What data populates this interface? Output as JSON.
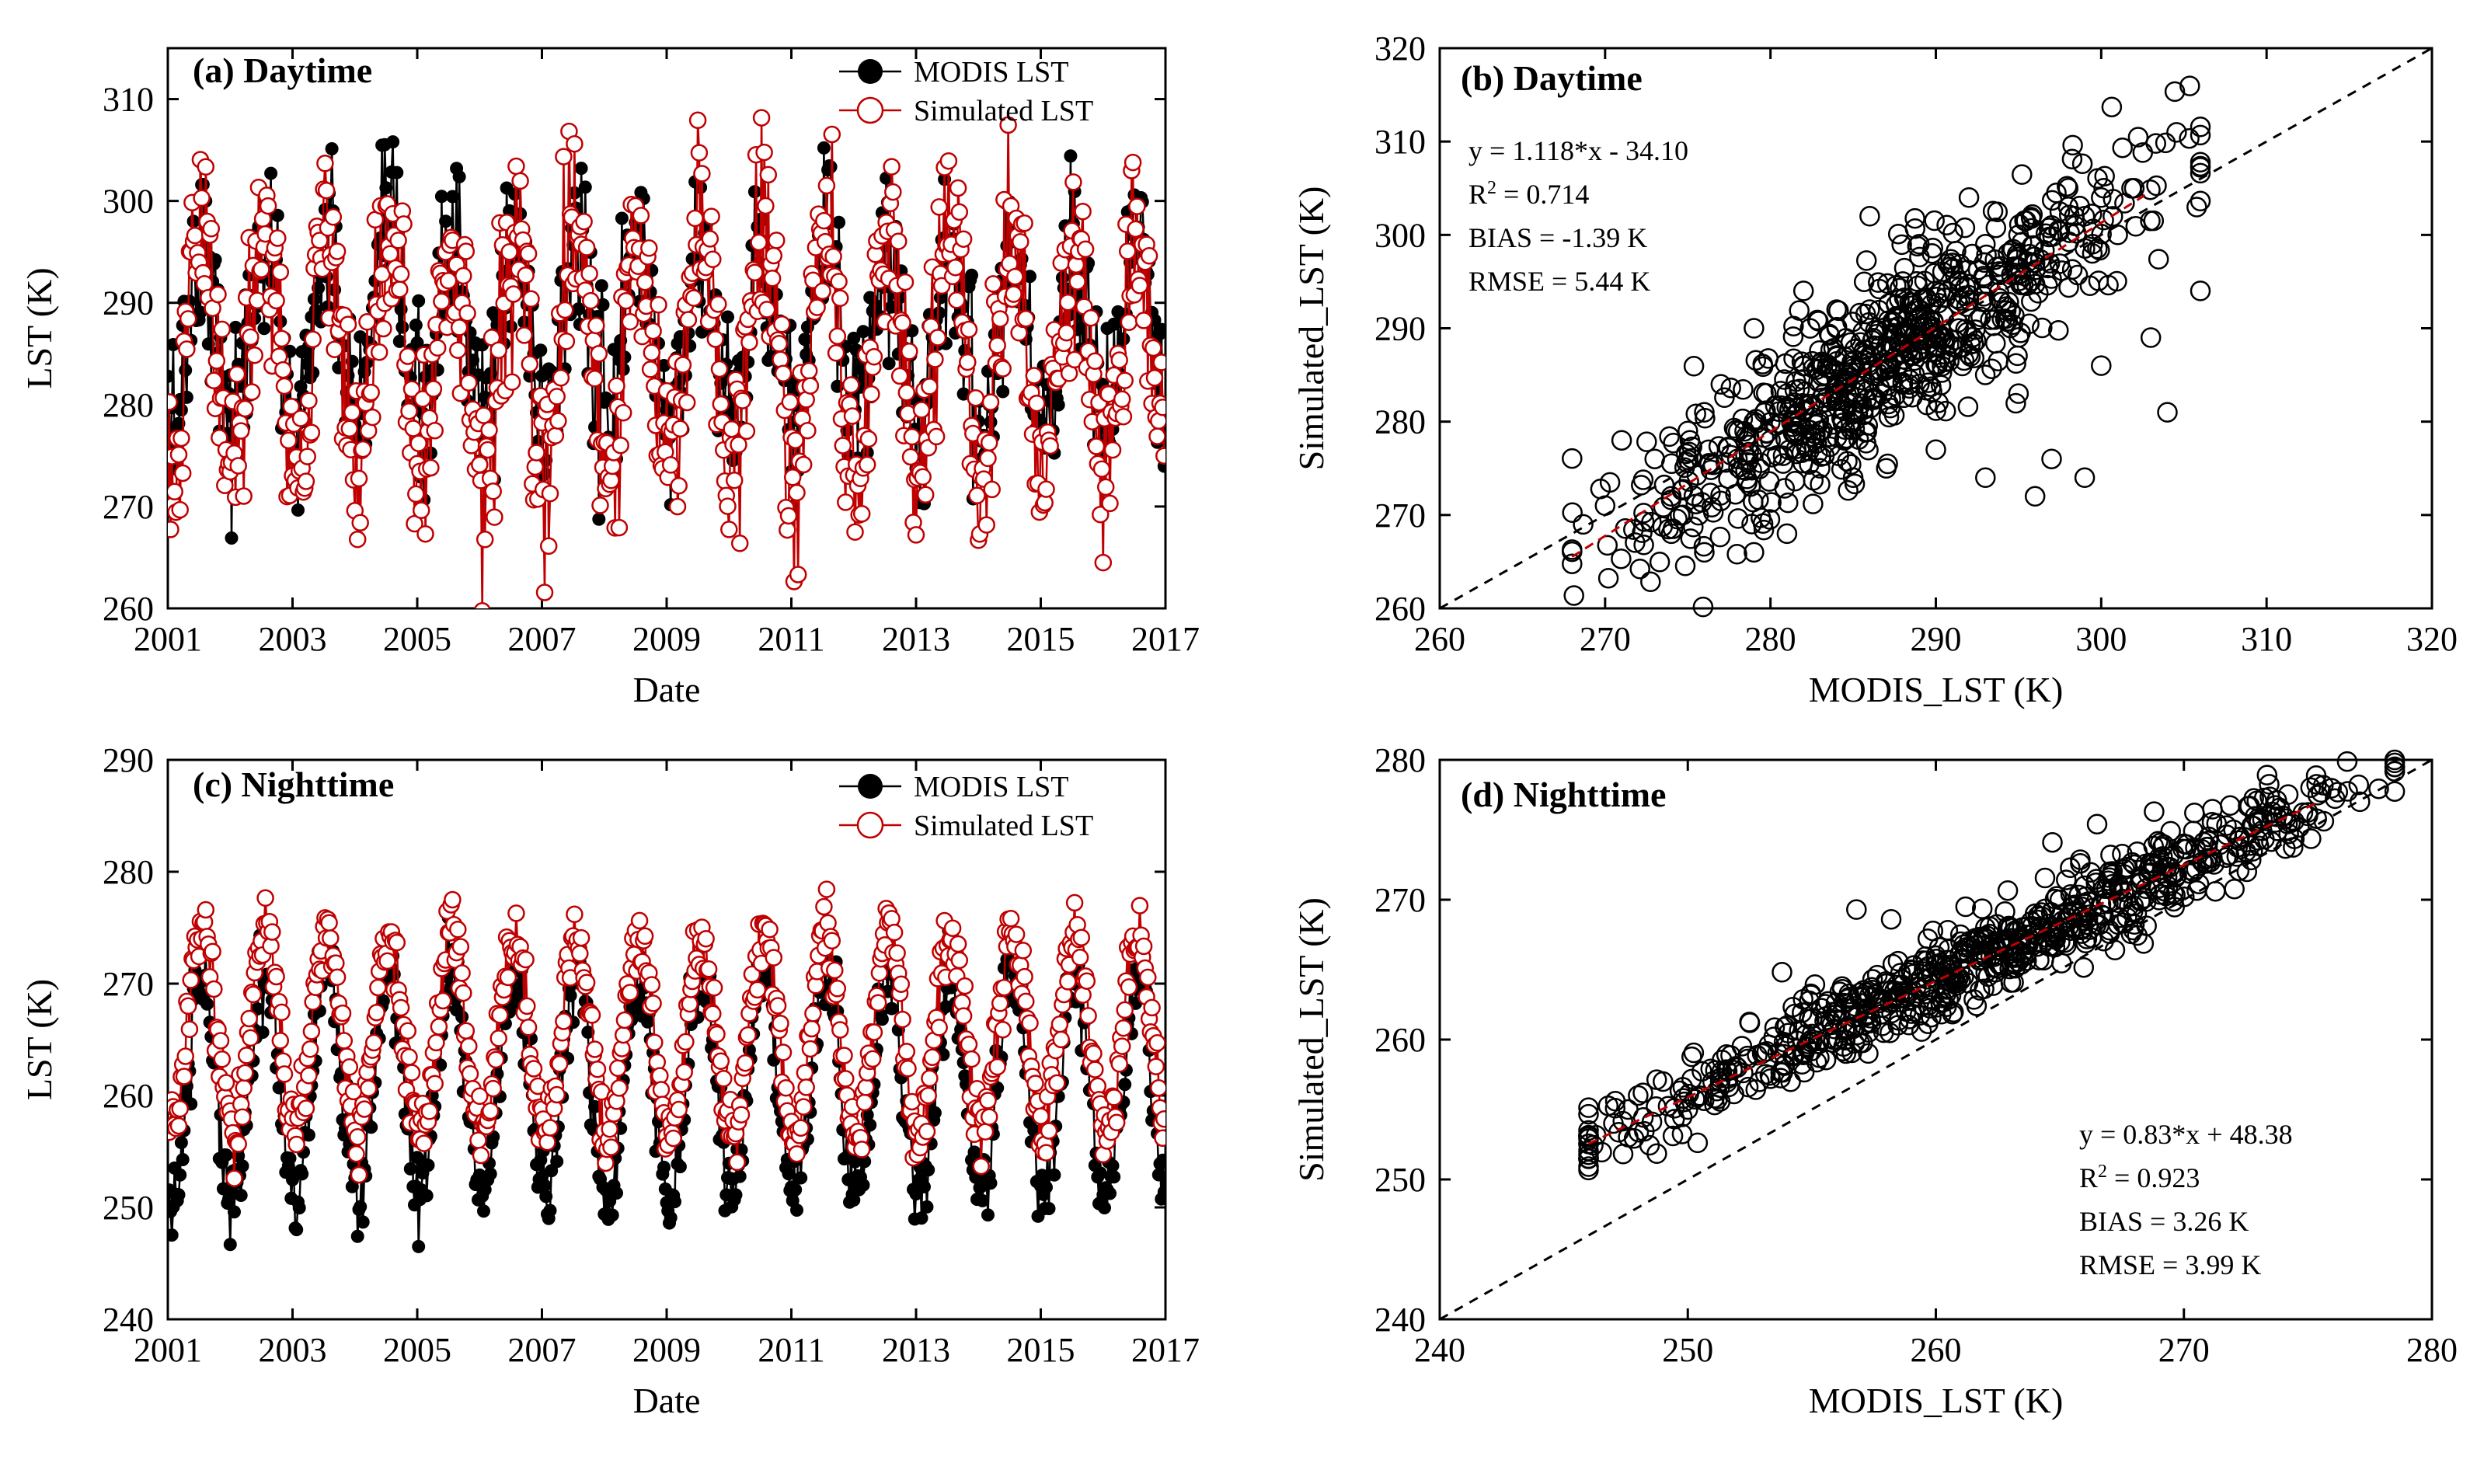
{
  "chart_data": [
    {
      "id": "a",
      "type": "line",
      "title": "(a) Daytime",
      "xlabel": "Date",
      "ylabel": "LST (K)",
      "xlim": [
        2001,
        2017
      ],
      "ylim": [
        260,
        315
      ],
      "xticks": [
        2001,
        2003,
        2005,
        2007,
        2009,
        2011,
        2013,
        2015,
        2017
      ],
      "yticks": [
        260,
        270,
        280,
        290,
        300,
        310
      ],
      "legend": [
        "MODIS LST",
        "Simulated LST"
      ],
      "series": [
        {
          "name": "MODIS LST",
          "color": "#000000",
          "marker": "filled-circle",
          "seasonal_model": {
            "mean": 287.0,
            "amplitude": 9.0,
            "peak_year_fraction": 0.55,
            "noise": 4.5
          },
          "values_per_year": 46
        },
        {
          "name": "Simulated LST",
          "color": "#c00000",
          "marker": "open-circle",
          "seasonal_model": {
            "mean": 285.0,
            "amplitude": 12.0,
            "peak_year_fraction": 0.55,
            "noise": 5.0
          },
          "values_per_year": 46
        }
      ]
    },
    {
      "id": "b",
      "type": "scatter",
      "title": "(b) Daytime",
      "xlabel": "MODIS_LST (K)",
      "ylabel": "Simulated_LST (K)",
      "xlim": [
        260,
        320
      ],
      "ylim": [
        260,
        320
      ],
      "xticks": [
        260,
        270,
        280,
        290,
        300,
        310,
        320
      ],
      "yticks": [
        260,
        270,
        280,
        290,
        300,
        310,
        320
      ],
      "stats": [
        "y = 1.118*x - 34.10",
        "R",
        "2",
        " = 0.714",
        "BIAS = -1.39 K",
        "RMSE = 5.44 K"
      ],
      "fit": {
        "slope": 1.118,
        "intercept": -34.1,
        "x_range": [
          268,
          303
        ]
      },
      "one_to_one": [
        260,
        320
      ],
      "points": [
        [
          270,
          271
        ],
        [
          271,
          278
        ],
        [
          273,
          276
        ],
        [
          274,
          272
        ],
        [
          275,
          279
        ],
        [
          276,
          281
        ],
        [
          277,
          284
        ],
        [
          278,
          276
        ],
        [
          279,
          280
        ],
        [
          280,
          278
        ],
        [
          281,
          283
        ],
        [
          282,
          286
        ],
        [
          283,
          279
        ],
        [
          284,
          290
        ],
        [
          285,
          286
        ],
        [
          286,
          292
        ],
        [
          287,
          288
        ],
        [
          288,
          295
        ],
        [
          289,
          291
        ],
        [
          290,
          294
        ],
        [
          291,
          297
        ],
        [
          292,
          293
        ],
        [
          293,
          299
        ],
        [
          294,
          296
        ],
        [
          295,
          300
        ],
        [
          296,
          297
        ],
        [
          297,
          301
        ],
        [
          298,
          303
        ],
        [
          299,
          302
        ],
        [
          300,
          304
        ],
        [
          302,
          305
        ],
        [
          303,
          289
        ],
        [
          304,
          281
        ],
        [
          306,
          294
        ],
        [
          300,
          286
        ],
        [
          297,
          276
        ],
        [
          295,
          283
        ],
        [
          299,
          274
        ],
        [
          296,
          272
        ],
        [
          293,
          274
        ],
        [
          285,
          274
        ],
        [
          287,
          275
        ],
        [
          290,
          277
        ],
        [
          281,
          268
        ],
        [
          279,
          266
        ],
        [
          276,
          266
        ],
        [
          274,
          268
        ],
        [
          283,
          275
        ],
        [
          285,
          281
        ],
        [
          288,
          284
        ],
        [
          279,
          290
        ],
        [
          282,
          294
        ],
        [
          286,
          302
        ],
        [
          292,
          304
        ],
        [
          298,
          305
        ],
        [
          301,
          300
        ],
        [
          289,
          299
        ],
        [
          284,
          292
        ],
        [
          291,
          288
        ],
        [
          294,
          291
        ]
      ],
      "scatter_model": {
        "x_mean": 287.0,
        "x_sd": 8.0,
        "residual_sd": 4.5,
        "n": 700
      }
    },
    {
      "id": "c",
      "type": "line",
      "title": "(c) Nighttime",
      "xlabel": "Date",
      "ylabel": "LST (K)",
      "xlim": [
        2001,
        2017
      ],
      "ylim": [
        240,
        290
      ],
      "xticks": [
        2001,
        2003,
        2005,
        2007,
        2009,
        2011,
        2013,
        2015,
        2017
      ],
      "yticks": [
        240,
        250,
        260,
        270,
        280,
        290
      ],
      "legend": [
        "MODIS LST",
        "Simulated LST"
      ],
      "series": [
        {
          "name": "MODIS LST",
          "color": "#000000",
          "marker": "filled-circle",
          "seasonal_model": {
            "mean": 261.0,
            "amplitude": 10.0,
            "peak_year_fraction": 0.55,
            "noise": 2.0
          },
          "values_per_year": 46
        },
        {
          "name": "Simulated LST",
          "color": "#c00000",
          "marker": "open-circle",
          "seasonal_model": {
            "mean": 265.5,
            "amplitude": 9.0,
            "peak_year_fraction": 0.55,
            "noise": 1.5
          },
          "values_per_year": 46
        }
      ]
    },
    {
      "id": "d",
      "type": "scatter",
      "title": "(d) Nighttime",
      "xlabel": "MODIS_LST (K)",
      "ylabel": "Simulated_LST (K)",
      "xlim": [
        240,
        280
      ],
      "ylim": [
        240,
        280
      ],
      "xticks": [
        240,
        250,
        260,
        270,
        280
      ],
      "yticks": [
        240,
        250,
        260,
        270,
        280
      ],
      "stats": [
        "y = 0.83*x + 48.38",
        "R",
        "2",
        " = 0.923",
        "BIAS = 3.26 K",
        "RMSE = 3.99 K"
      ],
      "fit": {
        "slope": 0.83,
        "intercept": 48.38,
        "x_range": [
          246,
          275.5
        ]
      },
      "one_to_one": [
        240,
        280
      ],
      "points": [
        [
          246,
          253.5
        ],
        [
          247,
          254
        ],
        [
          248,
          256
        ],
        [
          249,
          257
        ],
        [
          250,
          255
        ],
        [
          251,
          257
        ],
        [
          252,
          258
        ],
        [
          253,
          259
        ],
        [
          254,
          261
        ],
        [
          255,
          260
        ],
        [
          256,
          262
        ],
        [
          257,
          263
        ],
        [
          258,
          264
        ],
        [
          259,
          265
        ],
        [
          260,
          266
        ],
        [
          261,
          267
        ],
        [
          262,
          268
        ],
        [
          263,
          268
        ],
        [
          264,
          269
        ],
        [
          265,
          270
        ],
        [
          266,
          271
        ],
        [
          267,
          272
        ],
        [
          268,
          272.5
        ],
        [
          269,
          273
        ],
        [
          270,
          274
        ],
        [
          271,
          274.5
        ],
        [
          272,
          275
        ],
        [
          273,
          275.5
        ],
        [
          274,
          276
        ],
        [
          275,
          276
        ],
        [
          256.8,
          269.3
        ],
        [
          264.7,
          274.1
        ],
        [
          266.5,
          275.4
        ],
        [
          268.8,
          276.3
        ],
        [
          261.2,
          269.5
        ],
        [
          255.3,
          258.7
        ],
        [
          252.5,
          261.2
        ],
        [
          258.2,
          268.6
        ],
        [
          263.2,
          265.1
        ],
        [
          270.5,
          272.2
        ]
      ],
      "scatter_model": {
        "x_mean": 262.0,
        "x_sd": 7.5,
        "residual_sd": 1.5,
        "n": 700
      }
    }
  ]
}
